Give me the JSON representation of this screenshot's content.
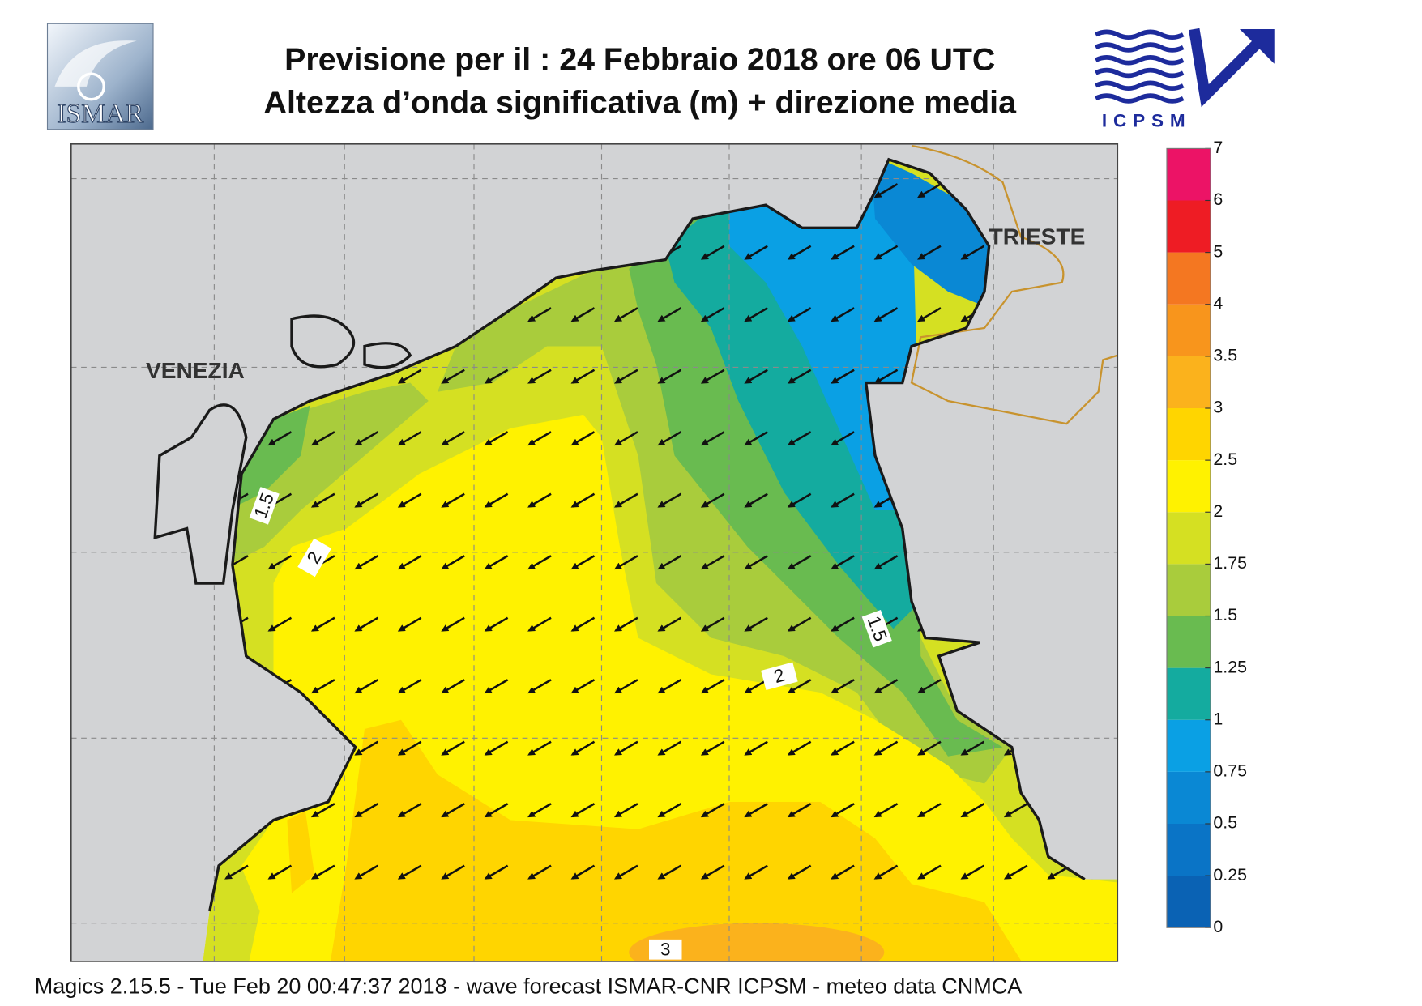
{
  "header": {
    "title_line1": "Previsione per il  :  24  Febbraio 2018   ore 06 UTC",
    "title_line2": "Altezza d’onda significativa (m) + direzione media"
  },
  "logos": {
    "left": "ISMAR",
    "right": "ICPSM"
  },
  "map": {
    "places": [
      "VENEZIA",
      "TRIESTE"
    ],
    "contour_labels": [
      "1.5",
      "2",
      "1.5",
      "2",
      "3"
    ]
  },
  "colorbar": {
    "levels": [
      0,
      0.25,
      0.5,
      0.75,
      1,
      1.25,
      1.5,
      1.75,
      2,
      2.5,
      3,
      3.5,
      4,
      5,
      6,
      7
    ],
    "colors": [
      "#0a62b4",
      "#0a74c6",
      "#0a88d4",
      "#0aa0e4",
      "#14ab9f",
      "#69bb50",
      "#a9cc3c",
      "#d5e022",
      "#fff200",
      "#ffd500",
      "#fbb21c",
      "#f8951c",
      "#f47721",
      "#ee1c24",
      "#ec1366"
    ]
  },
  "footer": "Magics 2.15.5 - Tue Feb 20 00:47:37 2018 - wave forecast  ISMAR-CNR  ICPSM - meteo data   CNMCA"
}
